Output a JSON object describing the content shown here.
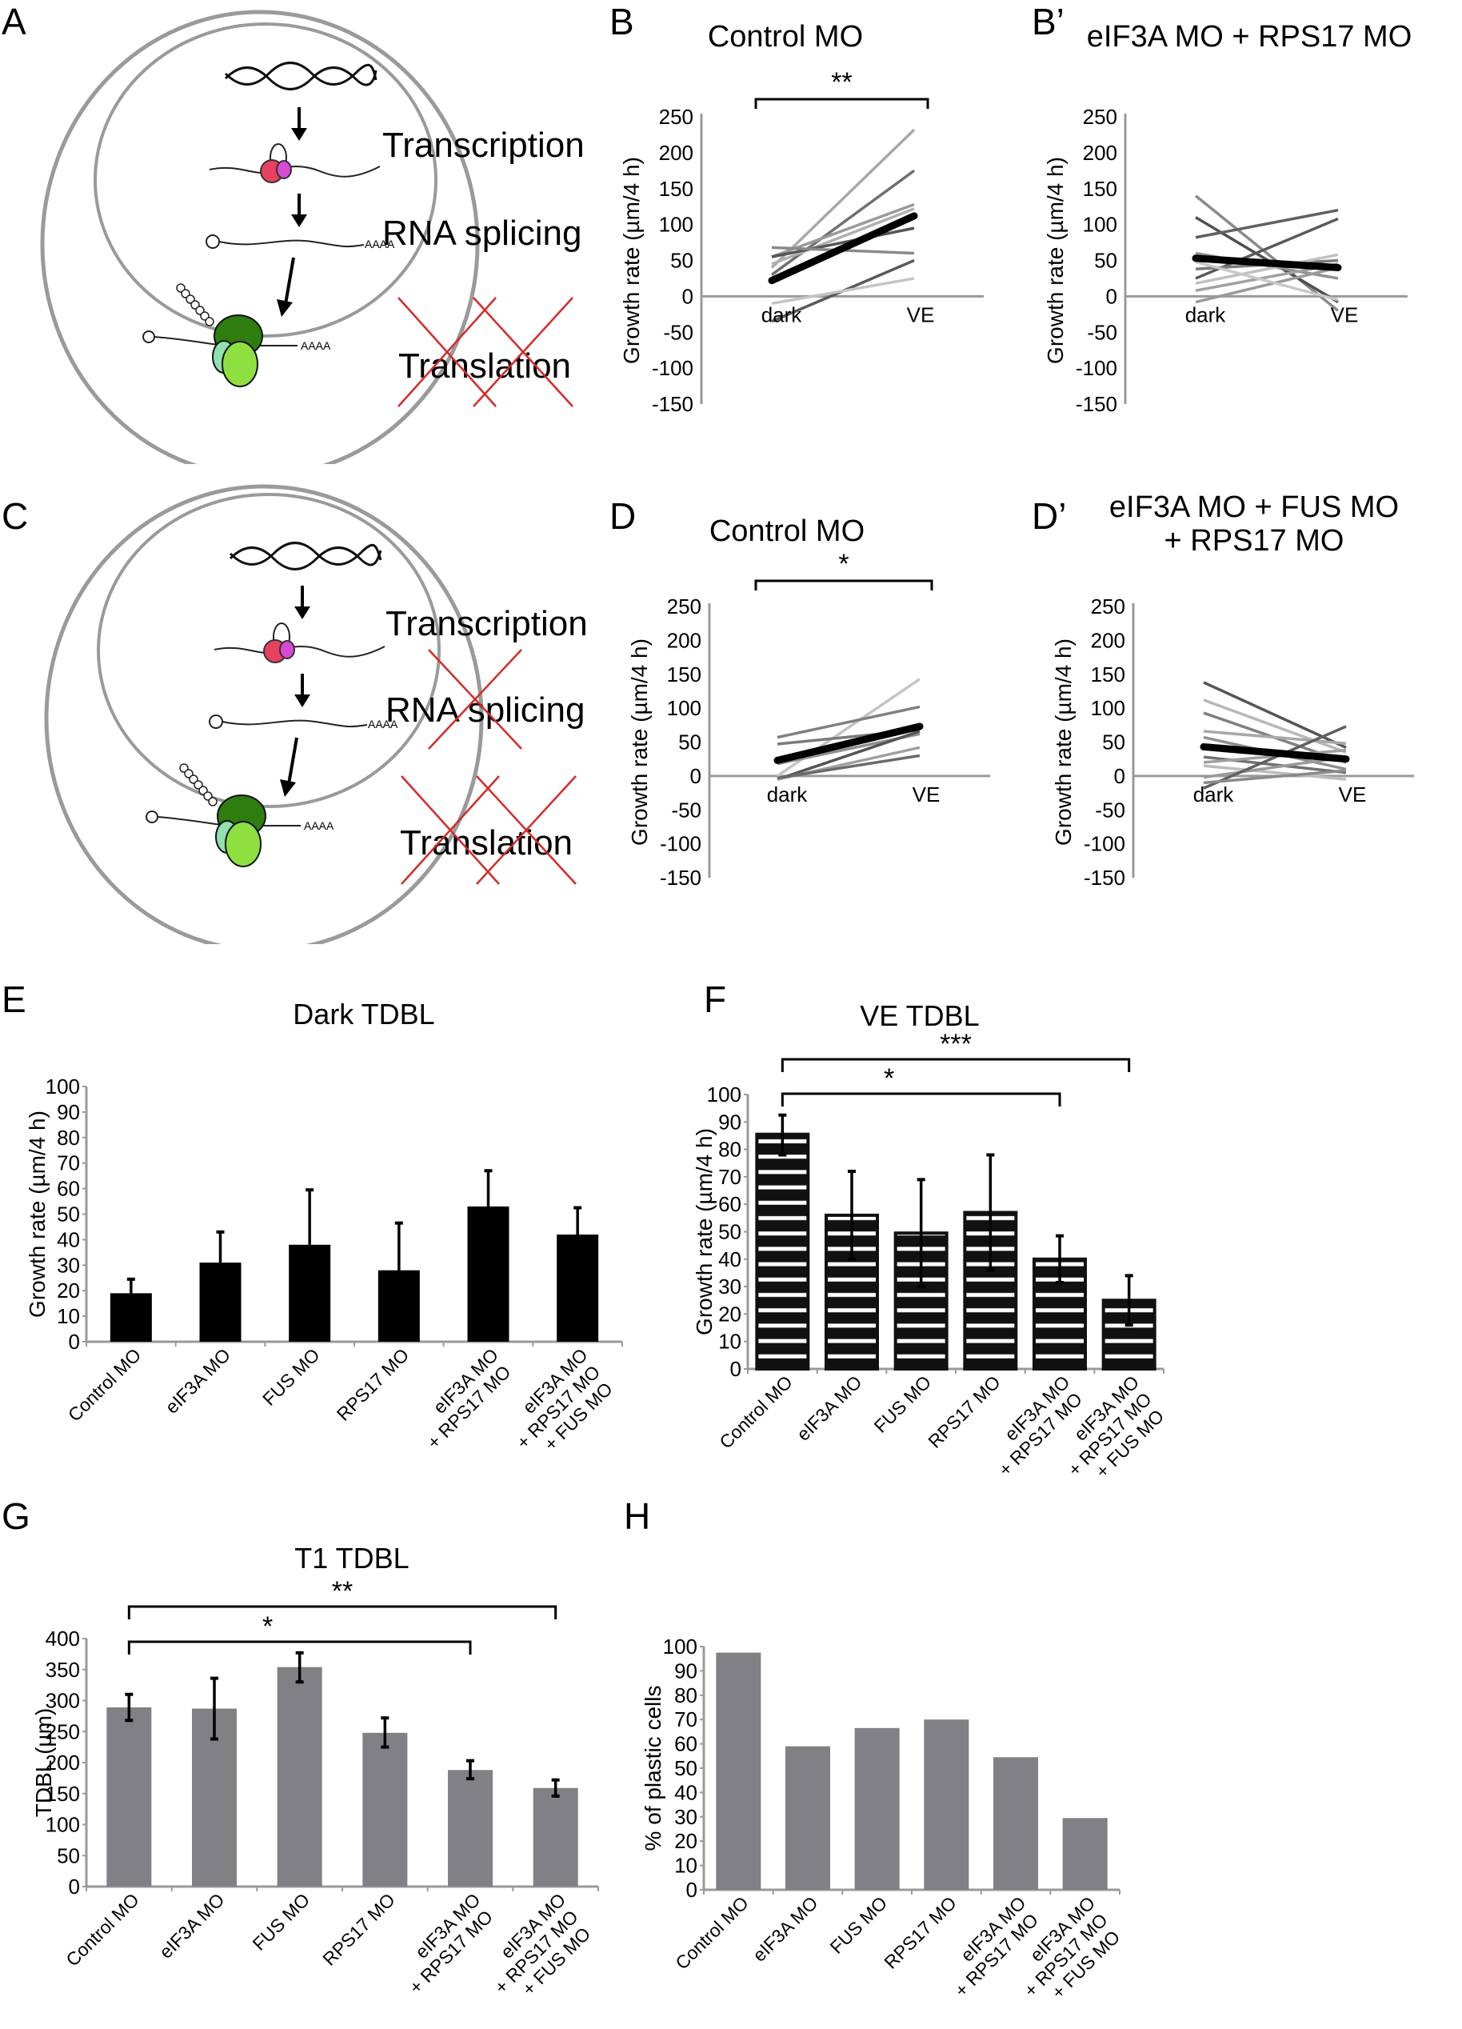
{
  "panel_labels": {
    "A": "A",
    "B": "B",
    "Bp": "B’",
    "C": "C",
    "D": "D",
    "Dp": "D’",
    "E": "E",
    "F": "F",
    "G": "G",
    "H": "H"
  },
  "diagrams": [
    {
      "id": "A",
      "steps": [
        "Transcription",
        "RNA splicing",
        "Translation"
      ],
      "blocked": [
        "Translation"
      ],
      "polyA": "AAAA"
    },
    {
      "id": "C",
      "steps": [
        "Transcription",
        "RNA splicing",
        "Translation"
      ],
      "blocked": [
        "RNA splicing",
        "Translation"
      ],
      "polyA": "AAAA"
    }
  ],
  "colors": {
    "cross": "#d42a2a",
    "membrane": "#9a9a9a",
    "bar_gray": "#808085",
    "bar_black": "#000000"
  },
  "chart_data": [
    {
      "id": "B",
      "type": "line",
      "title": "Control MO",
      "significance": "**",
      "categories": [
        "dark",
        "VE"
      ],
      "ylabel": "Growth rate (µm/4 h)",
      "ylim": [
        -150,
        250
      ],
      "yticks": [
        250,
        200,
        150,
        100,
        50,
        0,
        -50,
        -100,
        -150
      ],
      "series": [
        {
          "name": "cell1",
          "values": [
            40,
            232
          ],
          "shade": "#a8a8a8"
        },
        {
          "name": "cell2",
          "values": [
            30,
            175
          ],
          "shade": "#707070"
        },
        {
          "name": "cell3",
          "values": [
            55,
            128
          ],
          "shade": "#9a9a9a"
        },
        {
          "name": "cell4",
          "values": [
            45,
            122
          ],
          "shade": "#b0b0b0"
        },
        {
          "name": "cell5",
          "values": [
            55,
            95
          ],
          "shade": "#555555"
        },
        {
          "name": "cell6",
          "values": [
            68,
            60
          ],
          "shade": "#8a8a8a"
        },
        {
          "name": "cell7",
          "values": [
            -35,
            50
          ],
          "shade": "#5a5a5a"
        },
        {
          "name": "cell8",
          "values": [
            -10,
            25
          ],
          "shade": "#c4c4c4"
        },
        {
          "name": "mean",
          "values": [
            22,
            112
          ],
          "shade": "#000000",
          "mean": true
        }
      ]
    },
    {
      "id": "Bp",
      "type": "line",
      "title": "eIF3A MO + RPS17 MO",
      "significance": "",
      "categories": [
        "dark",
        "VE"
      ],
      "ylabel": "Growth rate (µm/4 h)",
      "ylim": [
        -150,
        250
      ],
      "yticks": [
        250,
        200,
        150,
        100,
        50,
        0,
        -50,
        -100,
        -150
      ],
      "series": [
        {
          "name": "cell1",
          "values": [
            140,
            -20
          ],
          "shade": "#8a8a8a"
        },
        {
          "name": "cell2",
          "values": [
            110,
            -8
          ],
          "shade": "#505050"
        },
        {
          "name": "cell3",
          "values": [
            82,
            120
          ],
          "shade": "#606060"
        },
        {
          "name": "cell4",
          "values": [
            25,
            108
          ],
          "shade": "#5a5a5a"
        },
        {
          "name": "cell5",
          "values": [
            60,
            25
          ],
          "shade": "#909090"
        },
        {
          "name": "cell6",
          "values": [
            38,
            50
          ],
          "shade": "#7a7a7a"
        },
        {
          "name": "cell7",
          "values": [
            18,
            58
          ],
          "shade": "#c0c0c0"
        },
        {
          "name": "cell8",
          "values": [
            8,
            45
          ],
          "shade": "#a0a0a0"
        },
        {
          "name": "cell9",
          "values": [
            -8,
            40
          ],
          "shade": "#9a9a9a"
        },
        {
          "name": "cell10",
          "values": [
            48,
            -5
          ],
          "shade": "#c8c8c8"
        },
        {
          "name": "mean",
          "values": [
            53,
            40
          ],
          "shade": "#000000",
          "mean": true
        }
      ]
    },
    {
      "id": "D",
      "type": "line",
      "title": "Control MO",
      "significance": "*",
      "categories": [
        "dark",
        "VE"
      ],
      "ylabel": "Growth rate (µm/4 h)",
      "ylim": [
        -150,
        250
      ],
      "yticks": [
        250,
        200,
        150,
        100,
        50,
        0,
        -50,
        -100,
        -150
      ],
      "series": [
        {
          "name": "cell1",
          "values": [
            0,
            143
          ],
          "shade": "#c4c4c4"
        },
        {
          "name": "cell2",
          "values": [
            57,
            102
          ],
          "shade": "#808080"
        },
        {
          "name": "cell3",
          "values": [
            47,
            68
          ],
          "shade": "#7a7a7a"
        },
        {
          "name": "cell4",
          "values": [
            18,
            62
          ],
          "shade": "#909090"
        },
        {
          "name": "cell5",
          "values": [
            -5,
            66
          ],
          "shade": "#555555"
        },
        {
          "name": "cell6",
          "values": [
            -5,
            42
          ],
          "shade": "#a0a0a0"
        },
        {
          "name": "cell7",
          "values": [
            -3,
            30
          ],
          "shade": "#6a6a6a"
        },
        {
          "name": "mean",
          "values": [
            23,
            73
          ],
          "shade": "#000000",
          "mean": true
        }
      ]
    },
    {
      "id": "Dp",
      "type": "line",
      "title": "eIF3A MO + FUS MO + RPS17 MO",
      "title_lines": [
        "eIF3A MO + FUS MO",
        "+ RPS17 MO"
      ],
      "significance": "",
      "categories": [
        "dark",
        "VE"
      ],
      "ylabel": "Growth rate (µm/4 h)",
      "ylim": [
        -150,
        250
      ],
      "yticks": [
        250,
        200,
        150,
        100,
        50,
        0,
        -50,
        -100,
        -150
      ],
      "series": [
        {
          "name": "cell1",
          "values": [
            138,
            42
          ],
          "shade": "#555555"
        },
        {
          "name": "cell2",
          "values": [
            112,
            35
          ],
          "shade": "#b8b8b8"
        },
        {
          "name": "cell3",
          "values": [
            93,
            20
          ],
          "shade": "#808080"
        },
        {
          "name": "cell4",
          "values": [
            66,
            48
          ],
          "shade": "#a8a8a8"
        },
        {
          "name": "cell5",
          "values": [
            57,
            10
          ],
          "shade": "#909090"
        },
        {
          "name": "cell6",
          "values": [
            28,
            5
          ],
          "shade": "#707070"
        },
        {
          "name": "cell7",
          "values": [
            20,
            38
          ],
          "shade": "#a0a0a0"
        },
        {
          "name": "cell8",
          "values": [
            15,
            -5
          ],
          "shade": "#bcbcbc"
        },
        {
          "name": "cell9",
          "values": [
            -2,
            28
          ],
          "shade": "#9a9a9a"
        },
        {
          "name": "cell10",
          "values": [
            -18,
            73
          ],
          "shade": "#606060"
        },
        {
          "name": "cell11",
          "values": [
            -10,
            8
          ],
          "shade": "#8a8a8a"
        },
        {
          "name": "mean",
          "values": [
            43,
            25
          ],
          "shade": "#000000",
          "mean": true
        }
      ]
    },
    {
      "id": "E",
      "type": "bar",
      "title": "Dark TDBL",
      "ylabel": "Growth rate (µm/4 h)",
      "categories": [
        "Control MO",
        "eIF3A MO",
        "FUS MO",
        "RPS17 MO",
        "eIF3A MO + RPS17 MO",
        "eIF3A MO + RPS17 MO + FUS MO"
      ],
      "category_lines": [
        [
          "Control MO"
        ],
        [
          "eIF3A MO"
        ],
        [
          "FUS MO"
        ],
        [
          "RPS17 MO"
        ],
        [
          "eIF3A MO",
          "+ RPS17 MO"
        ],
        [
          "eIF3A MO",
          "+ RPS17 MO",
          "+ FUS MO"
        ]
      ],
      "values": [
        19,
        31,
        38,
        28,
        53,
        42
      ],
      "error_upper": [
        24.5,
        43,
        59.5,
        46.5,
        67,
        52.5
      ],
      "error_lower": null,
      "ylim": [
        0,
        100
      ],
      "yticks": [
        0,
        10,
        20,
        30,
        40,
        50,
        60,
        70,
        80,
        90,
        100
      ],
      "style": "solid-black",
      "brackets": []
    },
    {
      "id": "F",
      "type": "bar",
      "title": "VE TDBL",
      "ylabel": "Growth rate (µm/4 h)",
      "categories": [
        "Control MO",
        "eIF3A MO",
        "FUS MO",
        "RPS17 MO",
        "eIF3A MO + RPS17 MO",
        "eIF3A MO + RPS17 MO + FUS MO"
      ],
      "category_lines": [
        [
          "Control MO"
        ],
        [
          "eIF3A MO"
        ],
        [
          "FUS MO"
        ],
        [
          "RPS17 MO"
        ],
        [
          "eIF3A MO",
          "+ RPS17 MO"
        ],
        [
          "eIF3A MO",
          "+ RPS17 MO",
          "+ FUS MO"
        ]
      ],
      "values": [
        85.5,
        56,
        49.5,
        57,
        40,
        25
      ],
      "error_upper": [
        92.5,
        72,
        69,
        78,
        48.5,
        34
      ],
      "error_lower": [
        78,
        40,
        30,
        36,
        31.5,
        16
      ],
      "ylim": [
        0,
        100
      ],
      "yticks": [
        0,
        10,
        20,
        30,
        40,
        50,
        60,
        70,
        80,
        90,
        100
      ],
      "style": "striped-black",
      "brackets": [
        {
          "from": 0,
          "to": 5,
          "label": "***"
        },
        {
          "from": 0,
          "to": 4,
          "label": "*"
        }
      ]
    },
    {
      "id": "G",
      "type": "bar",
      "title": "T1 TDBL",
      "ylabel": "TDBL (µm)",
      "categories": [
        "Control MO",
        "eIF3A MO",
        "FUS MO",
        "RPS17 MO",
        "eIF3A MO + RPS17 MO",
        "eIF3A MO + RPS17 MO + FUS MO"
      ],
      "category_lines": [
        [
          "Control MO"
        ],
        [
          "eIF3A MO"
        ],
        [
          "FUS MO"
        ],
        [
          "RPS17 MO"
        ],
        [
          "eIF3A MO",
          "+ RPS17 MO"
        ],
        [
          "eIF3A MO",
          "+ RPS17 MO",
          "+ FUS MO"
        ]
      ],
      "values": [
        289,
        287,
        354,
        248,
        188,
        159
      ],
      "error_upper": [
        310,
        336,
        377,
        272,
        203,
        172
      ],
      "error_lower": [
        268,
        238,
        330,
        225,
        174,
        146
      ],
      "ylim": [
        0,
        400
      ],
      "yticks": [
        0,
        50,
        100,
        150,
        200,
        250,
        300,
        350,
        400
      ],
      "style": "solid-gray",
      "brackets": [
        {
          "from": 0,
          "to": 5,
          "label": "**"
        },
        {
          "from": 0,
          "to": 4,
          "label": "*"
        }
      ]
    },
    {
      "id": "H",
      "type": "bar",
      "title": "",
      "ylabel": "% of plastic cells",
      "categories": [
        "Control MO",
        "eIF3A MO",
        "FUS MO",
        "RPS17 MO",
        "eIF3A MO + RPS17 MO",
        "eIF3A MO + RPS17 MO + FUS MO"
      ],
      "category_lines": [
        [
          "Control MO"
        ],
        [
          "eIF3A MO"
        ],
        [
          "FUS MO"
        ],
        [
          "RPS17 MO"
        ],
        [
          "eIF3A MO",
          "+ RPS17 MO"
        ],
        [
          "eIF3A MO",
          "+ RPS17 MO",
          "+ FUS MO"
        ]
      ],
      "values": [
        97.5,
        59,
        66.5,
        70,
        54.5,
        29.5
      ],
      "error_upper": null,
      "error_lower": null,
      "ylim": [
        0,
        100
      ],
      "yticks": [
        0,
        10,
        20,
        30,
        40,
        50,
        60,
        70,
        80,
        90,
        100
      ],
      "style": "solid-gray",
      "brackets": []
    }
  ]
}
